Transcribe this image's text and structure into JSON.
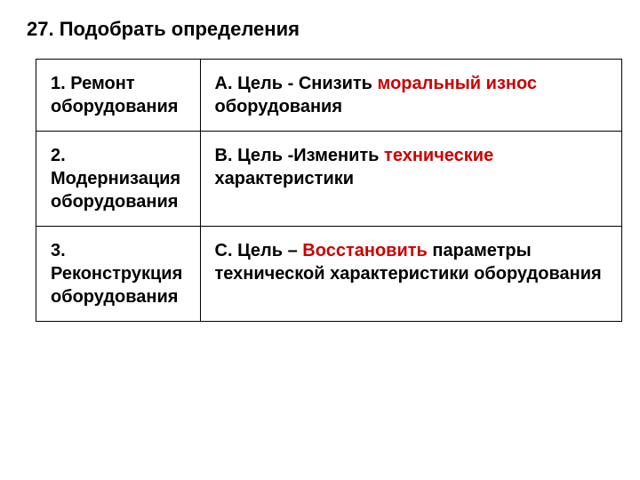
{
  "title": {
    "number": "27.",
    "text": "Подобрать определения"
  },
  "table": {
    "border_color": "#000000",
    "highlight_color": "#cc0000",
    "text_color": "#000000",
    "font_size": 20,
    "rows": [
      {
        "left": {
          "number": "1.",
          "text": "Ремонт оборудования"
        },
        "right": {
          "letter": "А.",
          "goal_label": "Цель - Снизить",
          "highlight": "моральный износ",
          "rest": "оборудования"
        }
      },
      {
        "left": {
          "number": "2.",
          "text": "Модернизация оборудования"
        },
        "right": {
          "letter": "В.",
          "goal_label": "Цель -Изменить",
          "highlight": "технические",
          "rest": "характеристики"
        }
      },
      {
        "left": {
          "number": "3.",
          "text": "Реконструкция оборудования"
        },
        "right": {
          "letter": "С.",
          "goal_label": "Цель –",
          "highlight": "Восстановить",
          "rest": "параметры технической характеристики оборудования"
        }
      }
    ]
  }
}
